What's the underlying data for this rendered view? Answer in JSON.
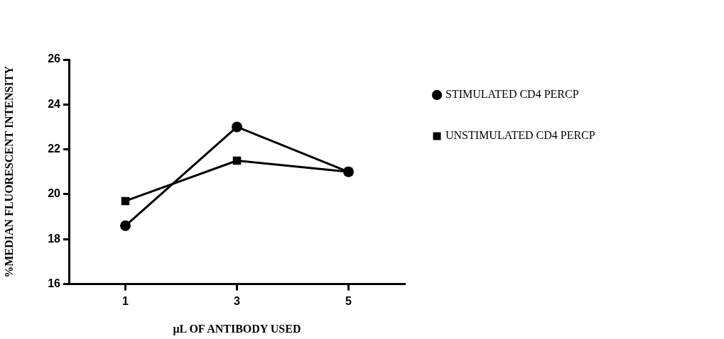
{
  "chart_data": {
    "type": "line",
    "xlabel": "μL OF ANTIBODY USED",
    "ylabel": "%MEDIAN FLUORESCENT INTENSITY",
    "x": [
      1,
      3,
      5
    ],
    "series": [
      {
        "name": "STIMULATED CD4 PERCP",
        "color": "#000000",
        "values": [
          18.6,
          23.0,
          21.0
        ],
        "marker": "circle"
      },
      {
        "name": "UNSTIMULATED CD4 PERCP",
        "color": "#000000",
        "values": [
          19.7,
          21.5,
          21.0
        ],
        "marker": "square"
      }
    ],
    "xlim": [
      0,
      6
    ],
    "xticks": [
      1,
      3,
      5
    ],
    "ylim": [
      16,
      26
    ],
    "yticks": [
      16,
      18,
      20,
      22,
      24,
      26
    ],
    "grid": false,
    "legend": "top right",
    "line_style": "solid"
  }
}
